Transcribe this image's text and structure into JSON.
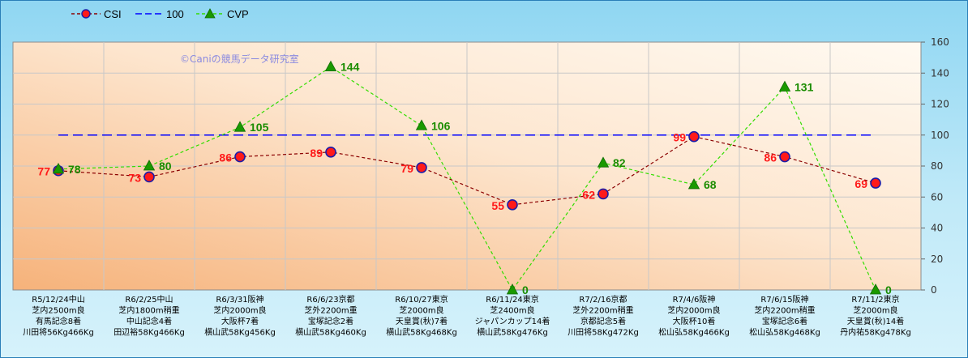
{
  "chart_data": {
    "type": "line",
    "watermark": "©Caniの競馬データ研究室",
    "categories": [
      [
        "R5/12/24中山",
        "芝内2500m良",
        "有馬記念8着",
        "川田将56Kg466Kg"
      ],
      [
        "R6/2/25中山",
        "芝内1800m稍重",
        "中山記念4着",
        "田辺裕58Kg466Kg"
      ],
      [
        "R6/3/31阪神",
        "芝内2000m良",
        "大阪杯7着",
        "横山武58Kg456Kg"
      ],
      [
        "R6/6/23京都",
        "芝外2200m重",
        "宝塚記念2着",
        "横山武58Kg460Kg"
      ],
      [
        "R6/10/27東京",
        "芝2000m良",
        "天皇賞(秋)7着",
        "横山武58Kg468Kg"
      ],
      [
        "R6/11/24東京",
        "芝2400m良",
        "ジャパンカップ14着",
        "横山武58Kg476Kg"
      ],
      [
        "R7/2/16京都",
        "芝外2200m稍重",
        "京都記念5着",
        "川田将58Kg472Kg"
      ],
      [
        "R7/4/6阪神",
        "芝内2000m良",
        "大阪杯10着",
        "松山弘58Kg466Kg"
      ],
      [
        "R7/6/15阪神",
        "芝内2200m稍重",
        "宝塚記念6着",
        "松山弘58Kg468Kg"
      ],
      [
        "R7/11/2東京",
        "芝2000m良",
        "天皇賞(秋)14着",
        "丹内祐58Kg478Kg"
      ]
    ],
    "series": [
      {
        "name": "CSI",
        "values": [
          77,
          73,
          86,
          89,
          79,
          55,
          62,
          99,
          86,
          69
        ],
        "color": "#8b0000",
        "marker": "#ff1a1a",
        "label_color": "#ff1a1a"
      },
      {
        "name": "100",
        "values": [
          100,
          100,
          100,
          100,
          100,
          100,
          100,
          100,
          100,
          100
        ],
        "color": "#0000ff"
      },
      {
        "name": "CVP",
        "values": [
          78,
          80,
          105,
          144,
          106,
          0,
          82,
          68,
          131,
          0
        ],
        "color": "#33dd00",
        "marker": "#1a9900",
        "label_color": "#1a8c00"
      }
    ],
    "ylim": [
      0,
      160
    ],
    "yticks": [
      0,
      20,
      40,
      60,
      80,
      100,
      120,
      140,
      160
    ],
    "y_axis_side": "right",
    "grid": true,
    "legend_position": "top-left"
  }
}
